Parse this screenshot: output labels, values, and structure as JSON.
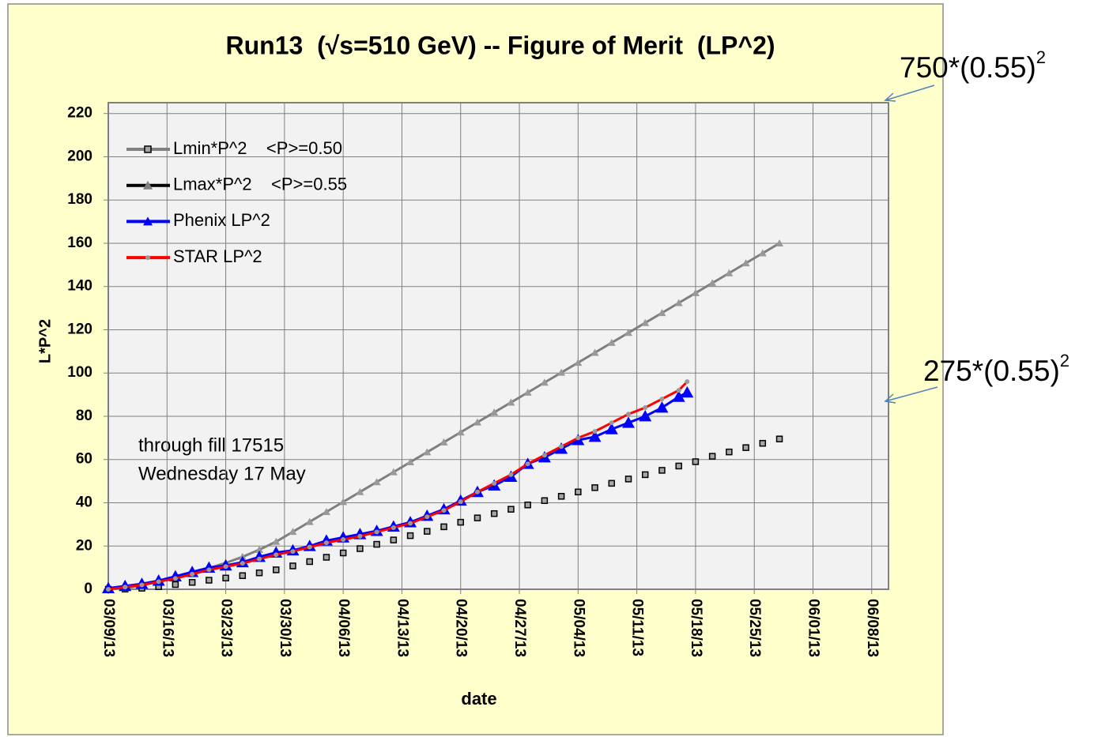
{
  "chart_data": {
    "type": "line",
    "title": "Run13  (√s=510 GeV) -- Figure of Merit  (LP^2)",
    "x_label": "date",
    "y_label": "L*P^2",
    "xlim": [
      "2013-03-09",
      "2013-06-10"
    ],
    "xticks": [
      {
        "value": "2013-03-09",
        "label": "03/09/13"
      },
      {
        "value": "2013-03-16",
        "label": "03/16/13"
      },
      {
        "value": "2013-03-23",
        "label": "03/23/13"
      },
      {
        "value": "2013-03-30",
        "label": "03/30/13"
      },
      {
        "value": "2013-04-06",
        "label": "04/06/13"
      },
      {
        "value": "2013-04-13",
        "label": "04/13/13"
      },
      {
        "value": "2013-04-20",
        "label": "04/20/13"
      },
      {
        "value": "2013-04-27",
        "label": "04/27/13"
      },
      {
        "value": "2013-05-04",
        "label": "05/04/13"
      },
      {
        "value": "2013-05-11",
        "label": "05/11/13"
      },
      {
        "value": "2013-05-18",
        "label": "05/18/13"
      },
      {
        "value": "2013-05-25",
        "label": "05/25/13"
      },
      {
        "value": "2013-06-01",
        "label": "06/01/13"
      },
      {
        "value": "2013-06-08",
        "label": "06/08/13"
      }
    ],
    "ylim": [
      0,
      225
    ],
    "yticks": [
      0,
      20,
      40,
      60,
      80,
      100,
      120,
      140,
      160,
      180,
      200,
      220
    ],
    "grid": true,
    "legend": "upper left",
    "series": [
      {
        "name": "Lmin*P^2    <P>=0.50",
        "color": "#808080",
        "marker": "square",
        "x": [
          "2013-03-09",
          "2013-03-11",
          "2013-03-13",
          "2013-03-15",
          "2013-03-17",
          "2013-03-19",
          "2013-03-21",
          "2013-03-23",
          "2013-03-25",
          "2013-03-27",
          "2013-03-29",
          "2013-03-31",
          "2013-04-02",
          "2013-04-04",
          "2013-04-06",
          "2013-04-08",
          "2013-04-10",
          "2013-04-12",
          "2013-04-14",
          "2013-04-16",
          "2013-04-18",
          "2013-04-20",
          "2013-04-22",
          "2013-04-24",
          "2013-04-26",
          "2013-04-28",
          "2013-04-30",
          "2013-05-02",
          "2013-05-04",
          "2013-05-06",
          "2013-05-08",
          "2013-05-10",
          "2013-05-12",
          "2013-05-14",
          "2013-05-16",
          "2013-05-18",
          "2013-05-20",
          "2013-05-22",
          "2013-05-24",
          "2013-05-26",
          "2013-05-28"
        ],
        "values": [
          0,
          0.1,
          0.5,
          1.2,
          2.2,
          3.2,
          4.2,
          5.2,
          6.3,
          7.6,
          9,
          10.8,
          12.8,
          14.8,
          16.8,
          18.8,
          20.8,
          22.8,
          24.8,
          26.8,
          28.9,
          31,
          33,
          35,
          37,
          39,
          41,
          43,
          45,
          47,
          49,
          51,
          53,
          55,
          57,
          59,
          61.5,
          63.5,
          65.5,
          67.5,
          69.5
        ]
      },
      {
        "name": "Lmax*P^2    <P>=0.55",
        "color": "#404040",
        "marker": "triangle",
        "x": [
          "2013-03-09",
          "2013-03-11",
          "2013-03-13",
          "2013-03-15",
          "2013-03-17",
          "2013-03-19",
          "2013-03-21",
          "2013-03-23",
          "2013-03-25",
          "2013-03-27",
          "2013-03-29",
          "2013-03-31",
          "2013-04-02",
          "2013-04-04",
          "2013-04-06",
          "2013-04-08",
          "2013-04-10",
          "2013-04-12",
          "2013-04-14",
          "2013-04-16",
          "2013-04-18",
          "2013-04-20",
          "2013-04-22",
          "2013-04-24",
          "2013-04-26",
          "2013-04-28",
          "2013-04-30",
          "2013-05-02",
          "2013-05-04",
          "2013-05-06",
          "2013-05-08",
          "2013-05-10",
          "2013-05-12",
          "2013-05-14",
          "2013-05-16",
          "2013-05-18",
          "2013-05-20",
          "2013-05-22",
          "2013-05-24",
          "2013-05-26",
          "2013-05-28"
        ],
        "values": [
          0,
          0.5,
          1.8,
          3.5,
          5.5,
          7.6,
          9.8,
          12.2,
          15,
          18.3,
          22,
          26.6,
          31.2,
          35.8,
          40.4,
          45,
          49.6,
          54.2,
          58.8,
          63.4,
          68,
          72.6,
          77.2,
          81.8,
          86.4,
          91,
          95.6,
          100.2,
          104.8,
          109.4,
          114,
          118.6,
          123.2,
          127.8,
          132.4,
          137,
          141.6,
          146.2,
          150.8,
          155.4,
          160
        ]
      },
      {
        "name": "Phenix LP^2",
        "color": "#0000ff",
        "marker": "triangle",
        "x": [
          "2013-03-09",
          "2013-03-11",
          "2013-03-13",
          "2013-03-15",
          "2013-03-17",
          "2013-03-19",
          "2013-03-21",
          "2013-03-23",
          "2013-03-25",
          "2013-03-27",
          "2013-03-29",
          "2013-03-31",
          "2013-04-02",
          "2013-04-04",
          "2013-04-06",
          "2013-04-08",
          "2013-04-10",
          "2013-04-12",
          "2013-04-14",
          "2013-04-16",
          "2013-04-18",
          "2013-04-20",
          "2013-04-22",
          "2013-04-24",
          "2013-04-26",
          "2013-04-28",
          "2013-04-30",
          "2013-05-02",
          "2013-05-04",
          "2013-05-06",
          "2013-05-08",
          "2013-05-10",
          "2013-05-12",
          "2013-05-14",
          "2013-05-16",
          "2013-05-17"
        ],
        "values": [
          0.5,
          1.5,
          2.5,
          4,
          6,
          8,
          10,
          11,
          12.5,
          15,
          17,
          18,
          20,
          22.5,
          24,
          25.5,
          27,
          29,
          31,
          34,
          37,
          41,
          45,
          48,
          52,
          58,
          61,
          65,
          69,
          70.5,
          74,
          77,
          80,
          84,
          89,
          91
        ]
      },
      {
        "name": "STAR LP^2",
        "color": "#ff0000",
        "marker": "plus",
        "x": [
          "2013-03-09",
          "2013-03-11",
          "2013-03-13",
          "2013-03-15",
          "2013-03-17",
          "2013-03-19",
          "2013-03-21",
          "2013-03-23",
          "2013-03-25",
          "2013-03-27",
          "2013-03-29",
          "2013-03-31",
          "2013-04-02",
          "2013-04-04",
          "2013-04-06",
          "2013-04-08",
          "2013-04-10",
          "2013-04-12",
          "2013-04-14",
          "2013-04-16",
          "2013-04-18",
          "2013-04-20",
          "2013-04-22",
          "2013-04-24",
          "2013-04-26",
          "2013-04-28",
          "2013-04-30",
          "2013-05-02",
          "2013-05-04",
          "2013-05-06",
          "2013-05-08",
          "2013-05-10",
          "2013-05-12",
          "2013-05-14",
          "2013-05-16",
          "2013-05-17"
        ],
        "values": [
          0,
          1,
          2,
          3.5,
          5,
          7,
          9,
          10.5,
          12,
          14,
          16,
          17.5,
          19.5,
          21.5,
          23,
          24.5,
          26.5,
          28.5,
          30.5,
          33.5,
          36.5,
          40.5,
          45,
          49,
          53,
          58,
          62,
          66,
          70,
          73,
          77,
          81,
          84,
          88,
          92,
          96
        ]
      }
    ],
    "annotations": [
      "through fill 17515",
      "Wednesday 17 May"
    ],
    "side_notes": [
      {
        "text": "750*(0.55)",
        "sup": "2"
      },
      {
        "text": "275*(0.55)",
        "sup": "2"
      }
    ]
  }
}
